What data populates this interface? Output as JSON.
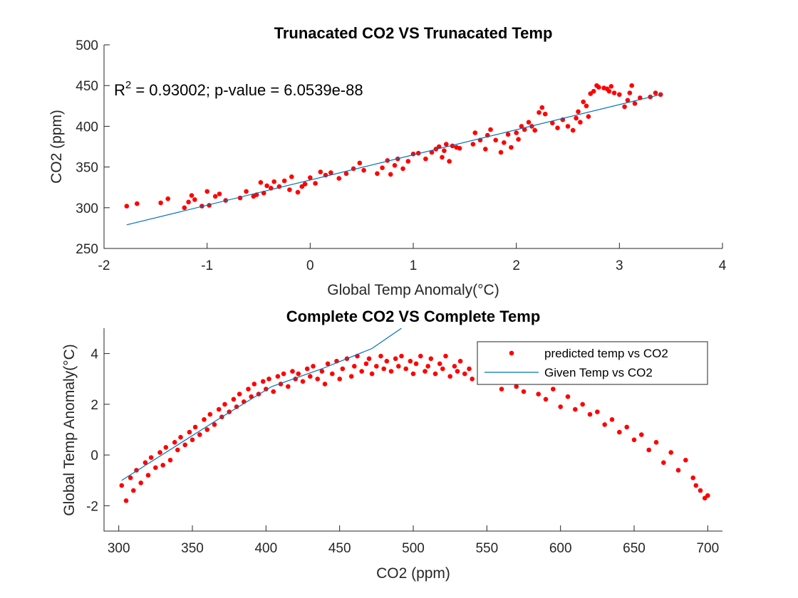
{
  "chart_data": [
    {
      "type": "scatter",
      "title": "Trunacated CO2 VS Trunacated Temp",
      "xlabel": "Global Temp Anomaly(°C)",
      "ylabel": "CO2 (ppm)",
      "xlim": [
        -2,
        4
      ],
      "ylim": [
        250,
        500
      ],
      "xticks": [
        -2,
        -1,
        0,
        1,
        2,
        3,
        4
      ],
      "yticks": [
        250,
        300,
        350,
        400,
        450,
        500
      ],
      "annotation": {
        "prefix": "R",
        "superscript": "2",
        "text": " = 0.93002; p-value = 6.0539e-88"
      },
      "grid": false,
      "colors": {
        "points": "#ff0000",
        "fit": "#0072bd"
      },
      "series": [
        {
          "kind": "scatter",
          "x": [
            -1.78,
            -1.68,
            -1.45,
            -1.38,
            -1.22,
            -1.18,
            -1.15,
            -1.12,
            -1.05,
            -1.0,
            -0.98,
            -0.92,
            -0.88,
            -0.82,
            -0.68,
            -0.62,
            -0.55,
            -0.52,
            -0.48,
            -0.45,
            -0.42,
            -0.38,
            -0.35,
            -0.3,
            -0.25,
            -0.2,
            -0.18,
            -0.12,
            -0.08,
            -0.05,
            0.0,
            0.05,
            0.1,
            0.15,
            0.2,
            0.28,
            0.35,
            0.42,
            0.48,
            0.52,
            0.65,
            0.7,
            0.75,
            0.78,
            0.82,
            0.85,
            0.9,
            0.95,
            1.0,
            1.05,
            1.12,
            1.18,
            1.22,
            1.25,
            1.28,
            1.3,
            1.32,
            1.35,
            1.38,
            1.42,
            1.45,
            1.58,
            1.6,
            1.65,
            1.7,
            1.72,
            1.75,
            1.8,
            1.85,
            1.88,
            1.92,
            1.95,
            2.0,
            2.02,
            2.05,
            2.08,
            2.12,
            2.15,
            2.18,
            2.22,
            2.25,
            2.28,
            2.35,
            2.4,
            2.45,
            2.5,
            2.55,
            2.58,
            2.6,
            2.62,
            2.65,
            2.68,
            2.7,
            2.72,
            2.75,
            2.78,
            2.8,
            2.85,
            2.88,
            2.9,
            2.92,
            2.95,
            3.0,
            3.05,
            3.08,
            3.1,
            3.12,
            3.15,
            3.2,
            3.3,
            3.35,
            3.4
          ],
          "y": [
            302,
            305,
            306,
            311,
            300,
            307,
            315,
            310,
            302,
            320,
            303,
            314,
            317,
            309,
            312,
            320,
            314,
            316,
            331,
            318,
            327,
            324,
            332,
            326,
            333,
            322,
            338,
            319,
            326,
            329,
            337,
            330,
            344,
            340,
            343,
            336,
            342,
            348,
            355,
            346,
            342,
            349,
            358,
            341,
            352,
            360,
            348,
            357,
            366,
            367,
            360,
            368,
            372,
            375,
            362,
            370,
            378,
            357,
            376,
            374,
            373,
            378,
            392,
            383,
            372,
            389,
            396,
            383,
            368,
            380,
            390,
            374,
            392,
            384,
            400,
            396,
            405,
            400,
            395,
            417,
            423,
            415,
            404,
            398,
            408,
            400,
            395,
            410,
            418,
            405,
            430,
            425,
            412,
            440,
            443,
            450,
            448,
            447,
            446,
            443,
            449,
            441,
            439,
            424,
            432,
            441,
            450,
            428,
            435,
            436,
            441,
            439
          ]
        },
        {
          "kind": "line",
          "x": [
            -1.78,
            3.4
          ],
          "y": [
            279,
            439
          ]
        }
      ]
    },
    {
      "type": "scatter",
      "title": "Complete CO2 VS Complete Temp",
      "xlabel": "CO2 (ppm)",
      "ylabel": "Global Temp Anomaly(°C)",
      "xlim": [
        290,
        710
      ],
      "ylim": [
        -3,
        5
      ],
      "xticks": [
        300,
        350,
        400,
        450,
        500,
        550,
        600,
        650,
        700
      ],
      "yticks": [
        -2,
        0,
        2,
        4
      ],
      "grid": false,
      "legend": "top-right",
      "colors": {
        "points": "#ff0000",
        "fit": "#0072bd"
      },
      "series": [
        {
          "name": "predicted temp vs CO2",
          "kind": "scatter",
          "x": [
            302,
            305,
            308,
            310,
            312,
            315,
            318,
            320,
            322,
            325,
            328,
            330,
            332,
            335,
            338,
            340,
            342,
            345,
            348,
            350,
            352,
            355,
            358,
            360,
            362,
            365,
            368,
            370,
            372,
            375,
            378,
            380,
            382,
            385,
            388,
            390,
            392,
            395,
            398,
            400,
            402,
            405,
            408,
            410,
            412,
            415,
            418,
            420,
            422,
            425,
            428,
            430,
            432,
            435,
            438,
            440,
            442,
            445,
            448,
            450,
            452,
            455,
            458,
            460,
            462,
            465,
            468,
            470,
            472,
            475,
            478,
            480,
            482,
            485,
            488,
            490,
            492,
            495,
            498,
            500,
            502,
            505,
            508,
            510,
            512,
            515,
            518,
            520,
            522,
            525,
            528,
            530,
            532,
            535,
            538,
            540,
            545,
            550,
            555,
            560,
            565,
            570,
            575,
            580,
            585,
            590,
            595,
            600,
            605,
            610,
            615,
            620,
            625,
            630,
            635,
            640,
            645,
            650,
            655,
            660,
            665,
            670,
            675,
            680,
            685,
            690,
            692,
            695,
            698,
            700
          ],
          "y": [
            -1.2,
            -1.8,
            -0.9,
            -1.4,
            -0.6,
            -1.1,
            -0.3,
            -0.8,
            -0.1,
            -0.5,
            0.1,
            -0.4,
            0.3,
            -0.2,
            0.5,
            0.2,
            0.7,
            0.4,
            0.9,
            0.6,
            1.1,
            0.8,
            1.4,
            1.0,
            1.6,
            1.2,
            1.8,
            1.5,
            2.0,
            1.7,
            2.2,
            1.9,
            2.4,
            2.1,
            2.6,
            2.3,
            2.8,
            2.4,
            2.9,
            2.6,
            3.0,
            2.5,
            3.1,
            2.8,
            3.2,
            2.7,
            3.3,
            3.0,
            3.2,
            2.9,
            3.4,
            3.1,
            3.5,
            3.0,
            3.3,
            2.8,
            3.6,
            3.2,
            3.7,
            3.0,
            3.4,
            3.8,
            3.1,
            3.5,
            3.9,
            3.3,
            3.6,
            3.8,
            3.2,
            3.5,
            3.9,
            3.4,
            3.7,
            3.3,
            3.8,
            3.5,
            3.9,
            3.4,
            3.7,
            3.2,
            3.6,
            3.9,
            3.3,
            3.5,
            3.8,
            3.2,
            3.6,
            3.4,
            3.9,
            3.1,
            3.5,
            3.3,
            3.7,
            3.2,
            3.4,
            3.0,
            3.1,
            3.3,
            2.9,
            2.6,
            3.1,
            2.7,
            2.5,
            2.9,
            2.4,
            2.2,
            2.6,
            1.9,
            2.3,
            1.8,
            2.0,
            1.6,
            1.7,
            1.2,
            1.4,
            0.9,
            1.1,
            0.6,
            0.8,
            0.2,
            0.5,
            -0.3,
            0.1,
            -0.6,
            -0.2,
            -0.9,
            -1.2,
            -1.4,
            -1.7,
            -1.6
          ]
        },
        {
          "name": "Given Temp vs CO2",
          "kind": "line",
          "x": [
            302,
            336,
            370,
            404,
            438,
            472,
            492
          ],
          "y": [
            -1.0,
            0.25,
            1.5,
            2.7,
            3.4,
            4.2,
            5.0
          ]
        }
      ]
    }
  ]
}
